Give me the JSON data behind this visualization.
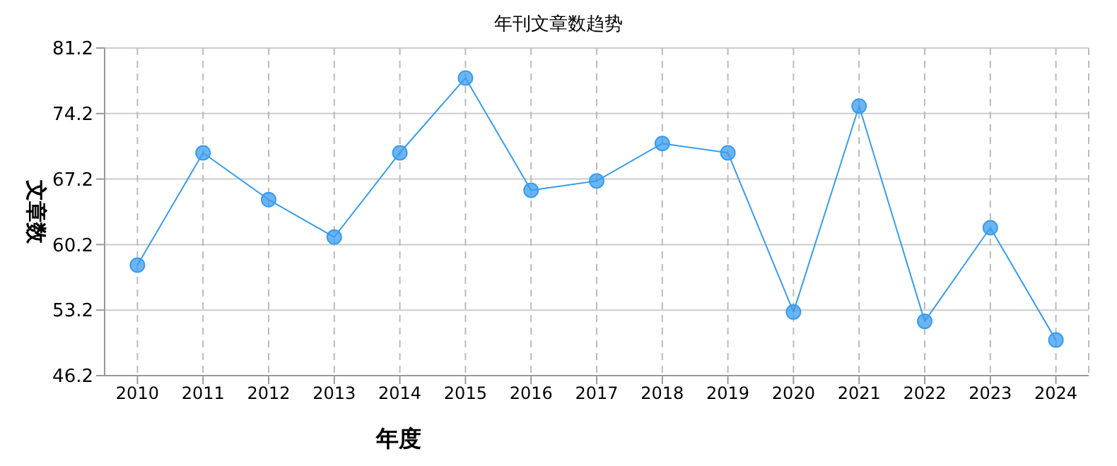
{
  "chart_data": {
    "type": "line",
    "title": "年刊文章数趋势",
    "xlabel": "年度",
    "ylabel": "文章数",
    "categories": [
      "2010",
      "2011",
      "2012",
      "2013",
      "2014",
      "2015",
      "2016",
      "2017",
      "2018",
      "2019",
      "2020",
      "2021",
      "2022",
      "2023",
      "2024"
    ],
    "series": [
      {
        "color": "#3a9cf0",
        "values": [
          58,
          70,
          65,
          61,
          70,
          78,
          66,
          67,
          71,
          70,
          53,
          75,
          52,
          62,
          50
        ]
      }
    ],
    "ylim": [
      46.2,
      81.2
    ],
    "yticks": [
      46.2,
      53.2,
      60.2,
      67.2,
      74.2,
      81.2
    ],
    "grid": true,
    "marker": "circle",
    "line_style": "solid"
  }
}
